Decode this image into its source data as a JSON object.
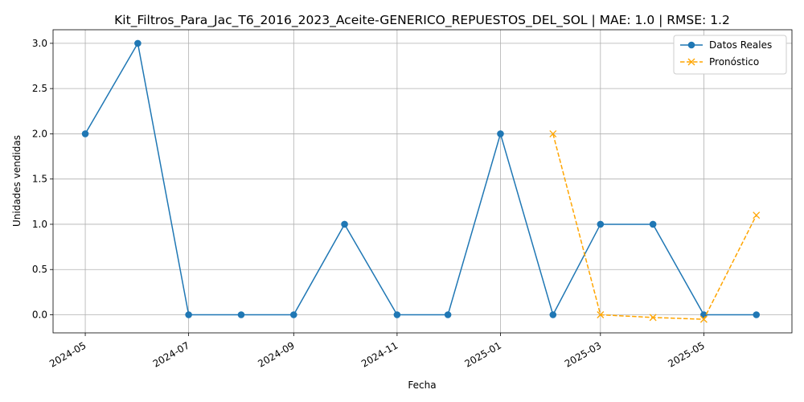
{
  "chart_data": {
    "type": "line",
    "title": "Kit_Filtros_Para_Jac_T6_2016_2023_Aceite-GENERICO_REPUESTOS_DEL_SOL | MAE: 1.0 | RMSE: 1.2",
    "xlabel": "Fecha",
    "ylabel": "Unidades vendidas",
    "x_ticks": [
      "2024-05",
      "2024-07",
      "2024-09",
      "2024-11",
      "2025-01",
      "2025-03",
      "2025-05"
    ],
    "y_ticks": [
      "0.0",
      "0.5",
      "1.0",
      "1.5",
      "2.0",
      "2.5",
      "3.0"
    ],
    "xlim": [
      "2024-04-12",
      "2025-06-22"
    ],
    "ylim": [
      -0.2,
      3.15
    ],
    "grid": true,
    "legend_position": "top-right",
    "series": [
      {
        "name": "Datos Reales",
        "color": "#1f77b4",
        "style": "solid",
        "marker": "circle",
        "x": [
          "2024-05-01",
          "2024-06-01",
          "2024-07-01",
          "2024-08-01",
          "2024-09-01",
          "2024-10-01",
          "2024-11-01",
          "2024-12-01",
          "2025-01-01",
          "2025-02-01",
          "2025-03-01",
          "2025-04-01",
          "2025-05-01",
          "2025-06-01"
        ],
        "values": [
          2,
          3,
          0,
          0,
          0,
          1,
          0,
          0,
          2,
          0,
          1,
          1,
          0,
          0
        ]
      },
      {
        "name": "Pronóstico",
        "color": "#ffa500",
        "style": "dashed",
        "marker": "x",
        "x": [
          "2025-02-01",
          "2025-03-01",
          "2025-04-01",
          "2025-05-01",
          "2025-06-01"
        ],
        "values": [
          2.0,
          0.0,
          -0.03,
          -0.05,
          1.1
        ]
      }
    ]
  }
}
